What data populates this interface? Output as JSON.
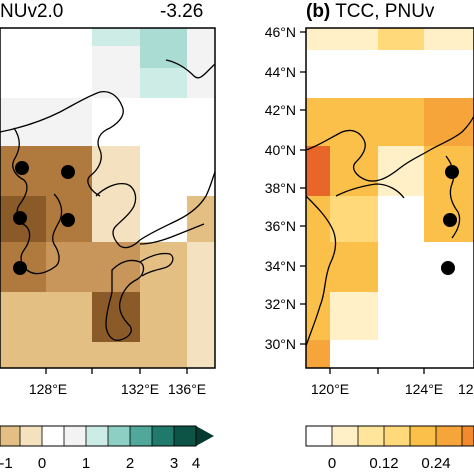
{
  "panel_a": {
    "title": "NUv2.0",
    "value": "-3.26",
    "lon_labels": [
      "128°E",
      "132°E",
      "136°E"
    ],
    "colorbar_labels": [
      "-1",
      "0",
      "1",
      "2",
      "3",
      "4"
    ],
    "dot_marker": "black-dot"
  },
  "panel_b": {
    "title": "(b) TCC, PNUv",
    "lat_labels": [
      "46°N",
      "44°N",
      "42°N",
      "40°N",
      "38°N",
      "36°N",
      "34°N",
      "32°N",
      "30°N"
    ],
    "lon_labels": [
      "120°E",
      "124°E",
      "12"
    ],
    "colorbar_labels": [
      "0",
      "0.12",
      "0.24"
    ],
    "dot_marker": "black-dot"
  },
  "colors": {
    "panel_a_scale": [
      "#f3e1bf",
      "#e3bf83",
      "#c8955a",
      "#b07a3f",
      "#8b5a29",
      "#ffffff",
      "#f3f3f3",
      "#cdece6",
      "#8ecfc3"
    ],
    "panel_b_scale": [
      "#ffffff",
      "#fff0c8",
      "#ffd97a",
      "#fbc04a",
      "#f6a53a",
      "#f08a2c",
      "#e8662a",
      "#dc4d20"
    ]
  }
}
